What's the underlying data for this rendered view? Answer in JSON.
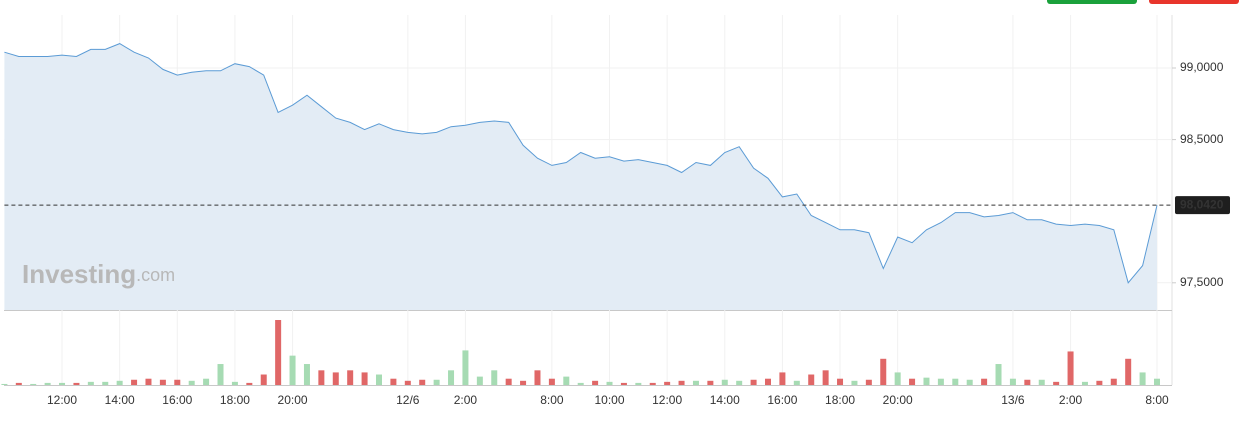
{
  "chart_data": {
    "type": "line",
    "watermark_brand": "Investing",
    "watermark_suffix": ".com",
    "categories": [
      null,
      null,
      null,
      null,
      "12:00",
      null,
      null,
      null,
      "14:00",
      null,
      null,
      null,
      "16:00",
      null,
      null,
      null,
      "18:00",
      null,
      null,
      null,
      "20:00",
      null,
      null,
      null,
      null,
      null,
      null,
      null,
      "12/6",
      null,
      null,
      null,
      "2:00",
      null,
      null,
      null,
      null,
      null,
      "8:00",
      null,
      null,
      null,
      "10:00",
      null,
      null,
      null,
      "12:00",
      null,
      null,
      null,
      "14:00",
      null,
      null,
      null,
      "16:00",
      null,
      null,
      null,
      "18:00",
      null,
      null,
      null,
      "20:00",
      null,
      null,
      null,
      null,
      null,
      null,
      null,
      "13/6",
      null,
      null,
      null,
      "2:00",
      null,
      null,
      null,
      null,
      null,
      "8:00"
    ],
    "values": [
      99.11,
      99.08,
      99.08,
      99.08,
      99.09,
      99.08,
      99.13,
      99.13,
      99.17,
      99.11,
      99.07,
      98.99,
      98.95,
      98.97,
      98.98,
      98.98,
      99.03,
      99.01,
      98.95,
      98.69,
      98.74,
      98.81,
      98.73,
      98.65,
      98.62,
      98.57,
      98.61,
      98.57,
      98.55,
      98.54,
      98.55,
      98.59,
      98.6,
      98.62,
      98.63,
      98.62,
      98.46,
      98.37,
      98.32,
      98.34,
      98.41,
      98.37,
      98.38,
      98.35,
      98.36,
      98.34,
      98.32,
      98.27,
      98.34,
      98.32,
      98.41,
      98.45,
      98.3,
      98.23,
      98.1,
      98.12,
      97.97,
      97.92,
      97.87,
      97.87,
      97.85,
      97.6,
      97.82,
      97.78,
      97.87,
      97.92,
      97.99,
      97.99,
      97.96,
      97.97,
      97.99,
      97.94,
      97.94,
      97.91,
      97.9,
      97.91,
      97.9,
      97.87,
      97.5,
      97.62,
      98.042
    ],
    "volume": [
      1,
      2,
      1,
      2,
      2,
      2,
      3,
      3,
      4,
      5,
      6,
      5,
      5,
      4,
      6,
      20,
      3,
      2,
      10,
      62,
      28,
      20,
      14,
      12,
      14,
      12,
      10,
      6,
      4,
      5,
      5,
      14,
      33,
      8,
      14,
      6,
      4,
      14,
      6,
      8,
      2,
      4,
      3,
      2,
      2,
      2,
      3,
      4,
      4,
      4,
      5,
      4,
      5,
      6,
      12,
      4,
      10,
      14,
      6,
      4,
      5,
      25,
      12,
      6,
      7,
      6,
      6,
      5,
      6,
      20,
      6,
      5,
      5,
      3,
      32,
      3,
      4,
      6,
      25,
      12,
      6
    ],
    "color": "#5b9bd5",
    "area_color": "#e3ecf5",
    "up_color": "#a6dbb3",
    "down_color": "#e06767",
    "ylim": [
      97.31,
      99.37
    ],
    "yticks": [
      {
        "value": 97.5,
        "label": "97,5000"
      },
      {
        "value": 98.5,
        "label": "98,5000"
      },
      {
        "value": 99.0,
        "label": "99,0000"
      }
    ],
    "last": {
      "value": 98.042,
      "label": "98,0420"
    },
    "grid": true
  }
}
